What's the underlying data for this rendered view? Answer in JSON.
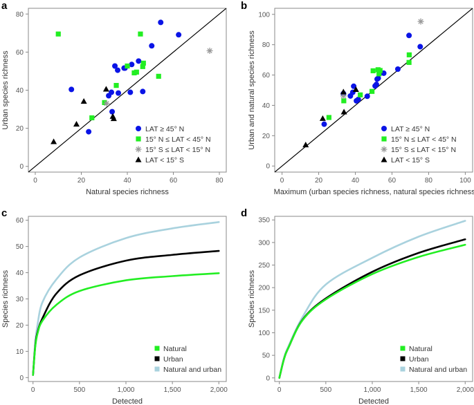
{
  "colors": {
    "lat_ge_45N": "#0a14e6",
    "lat_15N_45N": "#22ee22",
    "lat_15S_15N": "#999999",
    "lat_lt_15S": "#000000",
    "natural": "#22ee22",
    "urban": "#000000",
    "natural_and_urban": "#a9d2de"
  },
  "chart_data": [
    {
      "panel": "a",
      "type": "scatter",
      "xlabel": "Natural species richness",
      "ylabel": "Urban species richness",
      "xlim": [
        -3,
        83
      ],
      "ylim": [
        -3,
        83
      ],
      "xticks": [
        0,
        20,
        40,
        60,
        80
      ],
      "yticks": [
        0,
        20,
        40,
        60,
        80
      ],
      "reference_line": "y = x",
      "legend_position": "bottom-right",
      "series": [
        {
          "name": "LAT ≥ 45° N",
          "marker": "circle",
          "color_key": "lat_ge_45N",
          "points": [
            [
              54.5,
              75.6
            ],
            [
              62.3,
              69.1
            ],
            [
              50.6,
              63.3
            ],
            [
              44.9,
              55.3
            ],
            [
              41.9,
              53.5
            ],
            [
              34.6,
              52.7
            ],
            [
              35.8,
              50.5
            ],
            [
              38.6,
              51.6
            ],
            [
              39,
              51.6
            ],
            [
              15.7,
              40.4
            ],
            [
              33.1,
              38.9
            ],
            [
              31.9,
              37.1
            ],
            [
              36.1,
              38.5
            ],
            [
              41.3,
              38.9
            ],
            [
              46.7,
              39.3
            ],
            [
              33.4,
              28.7
            ],
            [
              23.2,
              18.2
            ]
          ]
        },
        {
          "name": "15° N ≤ LAT < 45° N",
          "marker": "square",
          "color_key": "lat_15N_45N",
          "points": [
            [
              10,
              69.5
            ],
            [
              45.7,
              69.5
            ],
            [
              40,
              52.7
            ],
            [
              47,
              54.2
            ],
            [
              46.7,
              52.4
            ],
            [
              43,
              49.1
            ],
            [
              44,
              49.5
            ],
            [
              53.6,
              47.3
            ],
            [
              35.2,
              42.5
            ],
            [
              30.1,
              33.5
            ],
            [
              24.6,
              25.5
            ]
          ]
        },
        {
          "name": "15° S ≤ LAT < 15° N",
          "marker": "asterisk",
          "color_key": "lat_15S_15N",
          "points": [
            [
              31,
              33
            ],
            [
              75.8,
              60.7
            ]
          ]
        },
        {
          "name": "LAT < 15° S",
          "marker": "triangle",
          "color_key": "lat_lt_15S",
          "points": [
            [
              30.8,
              40.6
            ],
            [
              21.1,
              34.2
            ],
            [
              17.9,
              22.2
            ],
            [
              8,
              13
            ],
            [
              33.7,
              26.3
            ],
            [
              34.1,
              25.1
            ]
          ]
        }
      ]
    },
    {
      "panel": "b",
      "type": "scatter",
      "xlabel": "Maximum (urban species richness, natural species richness)",
      "ylabel": "Urban and natural species richness",
      "xlim": [
        -4,
        104
      ],
      "ylim": [
        -4,
        104
      ],
      "xticks": [
        0,
        20,
        40,
        60,
        80,
        100
      ],
      "yticks": [
        0,
        20,
        40,
        60,
        80,
        100
      ],
      "reference_line": "y = x",
      "legend_position": "bottom-right",
      "series": [
        {
          "name": "LAT ≥ 45° N",
          "marker": "circle",
          "color_key": "lat_ge_45N",
          "points": [
            [
              69.3,
              86.1
            ],
            [
              75.4,
              78.7
            ],
            [
              63.2,
              63.9
            ],
            [
              55.5,
              61.2
            ],
            [
              53.4,
              61.1
            ],
            [
              52.5,
              57.9
            ],
            [
              51.9,
              57.3
            ],
            [
              51.5,
              53.8
            ],
            [
              50.8,
              52.8
            ],
            [
              39.1,
              52.6
            ],
            [
              38.6,
              48.6
            ],
            [
              37.3,
              46.2
            ],
            [
              33.5,
              47.8
            ],
            [
              41.6,
              43.9
            ],
            [
              40.6,
              43
            ],
            [
              46.5,
              46
            ],
            [
              23,
              27.6
            ]
          ]
        },
        {
          "name": "15° N ≤ LAT < 45° N",
          "marker": "square",
          "color_key": "lat_15N_45N",
          "points": [
            [
              69.4,
              73.3
            ],
            [
              69.3,
              68.3
            ],
            [
              49.7,
              62.8
            ],
            [
              52.4,
              63.5
            ],
            [
              53.5,
              63
            ],
            [
              52.9,
              60.8
            ],
            [
              49.1,
              49.2
            ],
            [
              42.7,
              46.9
            ],
            [
              33.7,
              43
            ],
            [
              25.6,
              32
            ]
          ]
        },
        {
          "name": "15° S ≤ LAT < 15° N",
          "marker": "asterisk",
          "color_key": "lat_15S_15N",
          "points": [
            [
              75.7,
              95.3
            ],
            [
              33.5,
              46.2
            ]
          ]
        },
        {
          "name": "LAT < 15° S",
          "marker": "triangle",
          "color_key": "lat_lt_15S",
          "points": [
            [
              33.5,
              48.9
            ],
            [
              40.3,
              50.5
            ],
            [
              33.8,
              35.7
            ],
            [
              22.2,
              31.4
            ],
            [
              12.9,
              14
            ]
          ]
        }
      ]
    },
    {
      "panel": "c",
      "type": "line",
      "xlabel": "Detected",
      "ylabel": "Species richness",
      "xlim": [
        -50,
        2080
      ],
      "ylim": [
        -1.5,
        61.5
      ],
      "xticks": [
        0,
        500,
        1000,
        1500,
        2000
      ],
      "xtick_labels": [
        "0",
        "500",
        "1,000",
        "1,500",
        "2,000"
      ],
      "yticks": [
        0,
        10,
        20,
        30,
        40,
        50,
        60
      ],
      "legend_position": "bottom-right",
      "series": [
        {
          "name": "Natural",
          "color_key": "natural",
          "x": [
            0,
            25,
            50,
            100,
            250,
            500,
            1000,
            1500,
            2000
          ],
          "y": [
            1,
            12,
            17,
            21.6,
            27.7,
            33,
            37.1,
            38.7,
            39.8
          ]
        },
        {
          "name": "Urban",
          "color_key": "urban",
          "x": [
            0,
            25,
            50,
            100,
            250,
            500,
            1000,
            1500,
            2000
          ],
          "y": [
            1,
            12.5,
            17.5,
            22.5,
            32,
            39,
            44.6,
            46.8,
            48.3
          ]
        },
        {
          "name": "Natural and urban",
          "color_key": "natural_and_urban",
          "x": [
            0,
            25,
            50,
            100,
            250,
            500,
            1000,
            1500,
            2000
          ],
          "y": [
            1,
            14,
            20.5,
            28.6,
            37.4,
            45.8,
            53.2,
            56.9,
            59.3
          ]
        }
      ]
    },
    {
      "panel": "d",
      "type": "line",
      "xlabel": "Detected",
      "ylabel": "Species richness",
      "xlim": [
        -50,
        2080
      ],
      "ylim": [
        -8,
        358
      ],
      "xticks": [
        0,
        500,
        1000,
        1500,
        2000
      ],
      "xtick_labels": [
        "0",
        "500",
        "1,000",
        "1,500",
        "2,000"
      ],
      "yticks": [
        0,
        50,
        100,
        150,
        200,
        250,
        300,
        350
      ],
      "legend_position": "bottom-right",
      "series": [
        {
          "name": "Natural",
          "color_key": "natural",
          "x": [
            0,
            50,
            100,
            250,
            500,
            1000,
            1500,
            2000
          ],
          "y": [
            0,
            42,
            68,
            128,
            174,
            230,
            268,
            295
          ]
        },
        {
          "name": "Urban",
          "color_key": "urban",
          "x": [
            0,
            50,
            100,
            250,
            500,
            1000,
            1500,
            2000
          ],
          "y": [
            0,
            42,
            68,
            129,
            176,
            235,
            277,
            307
          ]
        },
        {
          "name": "Natural and urban",
          "color_key": "natural_and_urban",
          "x": [
            0,
            50,
            100,
            250,
            500,
            1000,
            1500,
            2000
          ],
          "y": [
            0,
            44,
            71,
            135,
            207,
            266,
            313,
            348
          ]
        }
      ]
    }
  ]
}
